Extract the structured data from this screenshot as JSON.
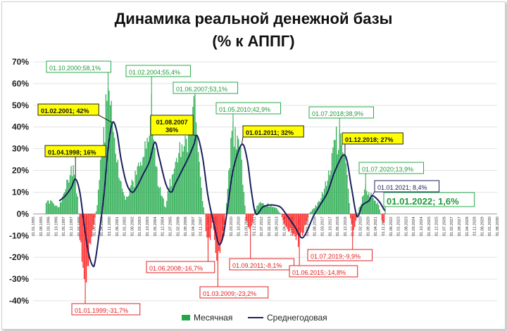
{
  "chart_data": {
    "type": "bar+line",
    "title_line1": "Динамика реальной денежной базы",
    "title_line2": "(% к АППГ)",
    "ylim": [
      -40,
      70
    ],
    "yticks": [
      "70%",
      "60%",
      "50%",
      "40%",
      "30%",
      "20%",
      "10%",
      "0%",
      "-10%",
      "-20%",
      "-30%",
      "-40%"
    ],
    "xlim": [
      "1995-01",
      "2030-08"
    ],
    "xtick_labels": [
      "01.01.1995",
      "01.08.1995",
      "01.03.1996",
      "01.10.1996",
      "01.05.1997",
      "01.12.1997",
      "01.07.1998",
      "01.02.1999",
      "01.09.1999",
      "01.04.2000",
      "01.11.2000",
      "01.06.2001",
      "01.01.2002",
      "01.08.2002",
      "01.03.2003",
      "01.10.2003",
      "01.05.2004",
      "01.12.2004",
      "01.07.2005",
      "01.02.2006",
      "01.09.2006",
      "01.04.2007",
      "01.11.2007",
      "01.06.2008",
      "01.01.2009",
      "01.08.2009",
      "01.03.2010",
      "01.10.2010",
      "01.05.2011",
      "01.12.2011",
      "01.07.2012",
      "01.02.2013",
      "01.09.2013",
      "01.04.2014",
      "01.11.2014",
      "01.06.2015",
      "01.01.2016",
      "01.08.2016",
      "01.03.2017",
      "01.10.2017",
      "01.05.2018",
      "01.12.2018",
      "01.07.2019",
      "01.02.2020",
      "01.09.2020",
      "01.04.2021",
      "01.11.2021",
      "01.06.2022",
      "01.01.2023",
      "01.08.2023",
      "01.03.2024",
      "01.10.2024",
      "01.05.2025",
      "01.12.2025",
      "01.07.2026",
      "01.02.2027",
      "01.09.2027",
      "01.04.2028",
      "01.11.2028",
      "01.06.2029",
      "01.01.2030",
      "01.08.2030"
    ],
    "series": [
      {
        "name": "Месячная",
        "kind": "bar",
        "anchors": [
          [
            "1995-12",
            0
          ],
          [
            "1996-01",
            5
          ],
          [
            "1996-06",
            6
          ],
          [
            "1996-12",
            3
          ],
          [
            "1997-06",
            10
          ],
          [
            "1997-12",
            22
          ],
          [
            "1998-03",
            18
          ],
          [
            "1998-04",
            16
          ],
          [
            "1998-06",
            8
          ],
          [
            "1998-07",
            0
          ],
          [
            "1998-08",
            -12
          ],
          [
            "1998-10",
            -22
          ],
          [
            "1998-12",
            -30
          ],
          [
            "1999-01",
            -31.7
          ],
          [
            "1999-03",
            -24
          ],
          [
            "1999-06",
            -14
          ],
          [
            "1999-09",
            -5
          ],
          [
            "1999-12",
            4
          ],
          [
            "2000-03",
            25
          ],
          [
            "2000-06",
            40
          ],
          [
            "2000-09",
            52
          ],
          [
            "2000-10",
            58.1
          ],
          [
            "2000-12",
            50
          ],
          [
            "2001-02",
            42
          ],
          [
            "2001-04",
            35
          ],
          [
            "2001-07",
            25
          ],
          [
            "2001-10",
            15
          ],
          [
            "2001-12",
            10
          ],
          [
            "2002-03",
            8
          ],
          [
            "2002-06",
            12
          ],
          [
            "2002-09",
            15
          ],
          [
            "2002-12",
            18
          ],
          [
            "2003-03",
            22
          ],
          [
            "2003-06",
            26
          ],
          [
            "2003-09",
            30
          ],
          [
            "2003-12",
            36
          ],
          [
            "2004-01",
            45
          ],
          [
            "2004-02",
            55.4
          ],
          [
            "2004-03",
            38
          ],
          [
            "2004-06",
            22
          ],
          [
            "2004-09",
            12
          ],
          [
            "2004-12",
            8
          ],
          [
            "2005-03",
            3
          ],
          [
            "2005-06",
            12
          ],
          [
            "2005-09",
            18
          ],
          [
            "2005-12",
            24
          ],
          [
            "2006-03",
            28
          ],
          [
            "2006-06",
            32
          ],
          [
            "2006-09",
            36
          ],
          [
            "2006-12",
            40
          ],
          [
            "2007-03",
            45
          ],
          [
            "2007-06",
            53.1
          ],
          [
            "2007-08",
            36
          ],
          [
            "2007-10",
            24
          ],
          [
            "2007-12",
            12
          ],
          [
            "2008-02",
            3
          ],
          [
            "2008-03",
            0
          ],
          [
            "2008-04",
            -8
          ],
          [
            "2008-06",
            -16.7
          ],
          [
            "2008-08",
            -12
          ],
          [
            "2008-10",
            -4
          ],
          [
            "2008-12",
            -12
          ],
          [
            "2009-01",
            -18
          ],
          [
            "2009-03",
            -23.2
          ],
          [
            "2009-05",
            -18
          ],
          [
            "2009-07",
            -12
          ],
          [
            "2009-09",
            -5
          ],
          [
            "2009-11",
            5
          ],
          [
            "2010-01",
            20
          ],
          [
            "2010-03",
            35
          ],
          [
            "2010-05",
            42.9
          ],
          [
            "2010-07",
            40
          ],
          [
            "2010-09",
            36
          ],
          [
            "2010-11",
            30
          ],
          [
            "2011-01",
            25
          ],
          [
            "2011-03",
            10
          ],
          [
            "2011-05",
            -3
          ],
          [
            "2011-07",
            -6
          ],
          [
            "2011-09",
            -8.1
          ],
          [
            "2011-11",
            -4
          ],
          [
            "2012-01",
            2
          ],
          [
            "2012-04",
            4
          ],
          [
            "2012-07",
            5
          ],
          [
            "2012-10",
            4
          ],
          [
            "2013-01",
            5
          ],
          [
            "2013-04",
            4
          ],
          [
            "2013-07",
            3
          ],
          [
            "2013-10",
            2
          ],
          [
            "2014-01",
            0
          ],
          [
            "2014-03",
            -3
          ],
          [
            "2014-06",
            -6
          ],
          [
            "2014-09",
            -8
          ],
          [
            "2014-12",
            -10
          ],
          [
            "2015-03",
            -12
          ],
          [
            "2015-06",
            -14.8
          ],
          [
            "2015-09",
            -10
          ],
          [
            "2015-12",
            -5
          ],
          [
            "2016-03",
            0
          ],
          [
            "2016-06",
            2
          ],
          [
            "2016-09",
            4
          ],
          [
            "2016-12",
            6
          ],
          [
            "2017-03",
            10
          ],
          [
            "2017-06",
            15
          ],
          [
            "2017-09",
            20
          ],
          [
            "2017-12",
            28
          ],
          [
            "2018-03",
            34
          ],
          [
            "2018-07",
            38.9
          ],
          [
            "2018-09",
            32
          ],
          [
            "2018-12",
            27
          ],
          [
            "2019-02",
            18
          ],
          [
            "2019-04",
            5
          ],
          [
            "2019-05",
            -2
          ],
          [
            "2019-07",
            -9.9
          ],
          [
            "2019-09",
            -6
          ],
          [
            "2019-11",
            -2
          ],
          [
            "2020-01",
            3
          ],
          [
            "2020-04",
            8
          ],
          [
            "2020-07",
            13.9
          ],
          [
            "2020-10",
            10
          ],
          [
            "2021-01",
            8.4
          ],
          [
            "2021-04",
            6
          ],
          [
            "2021-07",
            4
          ],
          [
            "2021-09",
            0
          ],
          [
            "2021-10",
            -3
          ],
          [
            "2021-12",
            -4
          ],
          [
            "2022-01",
            1.6
          ]
        ]
      },
      {
        "name": "Среднегодовая",
        "kind": "line",
        "anchors": [
          [
            "1997-01",
            6
          ],
          [
            "1997-06",
            8
          ],
          [
            "1997-12",
            12
          ],
          [
            "1998-04",
            16
          ],
          [
            "1998-08",
            10
          ],
          [
            "1998-12",
            -5
          ],
          [
            "1999-04",
            -18
          ],
          [
            "1999-08",
            -24
          ],
          [
            "1999-10",
            -22
          ],
          [
            "2000-01",
            -12
          ],
          [
            "2000-06",
            8
          ],
          [
            "2000-10",
            30
          ],
          [
            "2001-02",
            42
          ],
          [
            "2001-06",
            38
          ],
          [
            "2001-10",
            25
          ],
          [
            "2002-03",
            14
          ],
          [
            "2002-08",
            10
          ],
          [
            "2002-12",
            12
          ],
          [
            "2003-06",
            18
          ],
          [
            "2003-12",
            24
          ],
          [
            "2004-05",
            33
          ],
          [
            "2004-09",
            26
          ],
          [
            "2005-03",
            14
          ],
          [
            "2005-08",
            10
          ],
          [
            "2005-12",
            14
          ],
          [
            "2006-06",
            20
          ],
          [
            "2006-12",
            26
          ],
          [
            "2007-05",
            32
          ],
          [
            "2007-08",
            36
          ],
          [
            "2008-01",
            26
          ],
          [
            "2008-06",
            8
          ],
          [
            "2008-12",
            -6
          ],
          [
            "2009-04",
            -14
          ],
          [
            "2009-08",
            -10
          ],
          [
            "2009-12",
            3
          ],
          [
            "2010-05",
            20
          ],
          [
            "2011-01",
            32
          ],
          [
            "2011-06",
            25
          ],
          [
            "2011-10",
            10
          ],
          [
            "2012-02",
            0
          ],
          [
            "2012-08",
            3
          ],
          [
            "2013-01",
            4
          ],
          [
            "2013-07",
            4
          ],
          [
            "2014-01",
            3
          ],
          [
            "2014-07",
            -1
          ],
          [
            "2015-02",
            -6
          ],
          [
            "2015-08",
            -11
          ],
          [
            "2016-01",
            -8
          ],
          [
            "2016-07",
            -1
          ],
          [
            "2017-01",
            4
          ],
          [
            "2017-08",
            10
          ],
          [
            "2018-03",
            20
          ],
          [
            "2018-12",
            27
          ],
          [
            "2019-06",
            12
          ],
          [
            "2019-11",
            -1
          ],
          [
            "2020-04",
            4
          ],
          [
            "2020-10",
            6
          ],
          [
            "2021-01",
            8.4
          ],
          [
            "2021-07",
            6
          ],
          [
            "2021-12",
            2
          ],
          [
            "2022-01",
            1.6
          ]
        ]
      }
    ],
    "annotations": [
      {
        "text": "01.10.2000;58,1%",
        "date": "2000-10",
        "value": 58.1,
        "style": "green-box"
      },
      {
        "text": "01.02.2004;55,4%",
        "date": "2004-02",
        "value": 55.4,
        "style": "green-box"
      },
      {
        "text": "01.06.2007;53,1%",
        "date": "2007-06",
        "value": 53.1,
        "style": "green-box"
      },
      {
        "text": "01.05.2010;42,9%",
        "date": "2010-05",
        "value": 42.9,
        "style": "green-box"
      },
      {
        "text": "01.07.2018;38,9%",
        "date": "2018-07",
        "value": 38.9,
        "style": "green-box"
      },
      {
        "text": "01.07.2020;13,9%",
        "date": "2020-07",
        "value": 13.9,
        "style": "green-box"
      },
      {
        "text": "01.01.2022; 1,6%",
        "date": "2022-01",
        "value": 1.6,
        "style": "green-box-large"
      },
      {
        "text": "01.02.2001; 42%",
        "date": "2001-02",
        "value": 42,
        "style": "yellow-box"
      },
      {
        "text": "01.04.1998; 16%",
        "date": "1998-04",
        "value": 16,
        "style": "yellow-box"
      },
      {
        "text": "01.08.2007\n36%",
        "date": "2007-08",
        "value": 36,
        "style": "yellow-box"
      },
      {
        "text": "01.01.2011; 32%",
        "date": "2011-01",
        "value": 32,
        "style": "yellow-box"
      },
      {
        "text": "01.12.2018; 27%",
        "date": "2018-12",
        "value": 27,
        "style": "yellow-box"
      },
      {
        "text": "01.01.2021; 8,4%",
        "date": "2021-01",
        "value": 8.4,
        "style": "navy-box"
      },
      {
        "text": "01.01.1999;-31,7%",
        "date": "1999-01",
        "value": -31.7,
        "style": "red-box"
      },
      {
        "text": "01.06.2008;-16,7%",
        "date": "2008-06",
        "value": -16.7,
        "style": "red-box"
      },
      {
        "text": "01.03.2009;-23,2%",
        "date": "2009-03",
        "value": -23.2,
        "style": "red-box"
      },
      {
        "text": "01.09.2011;-8,1%",
        "date": "2011-09",
        "value": -8.1,
        "style": "red-box"
      },
      {
        "text": "01.06.2015;-14,8%",
        "date": "2015-06",
        "value": -14.8,
        "style": "red-box"
      },
      {
        "text": "01.07.2019;-9,9%",
        "date": "2019-07",
        "value": -9.9,
        "style": "red-box"
      }
    ],
    "colors": {
      "positive_bar": "#22a84a",
      "negative_bar": "#ff1a1a",
      "line": "#1a1f5c",
      "green_text": "#1f9a3a",
      "red_text": "#e02020",
      "navy_text": "#1a1f5c",
      "yellow_fill": "#ffff00"
    },
    "legend": {
      "position": "bottom",
      "bar_label": "Месячная",
      "line_label": "Среднегодовая"
    }
  }
}
